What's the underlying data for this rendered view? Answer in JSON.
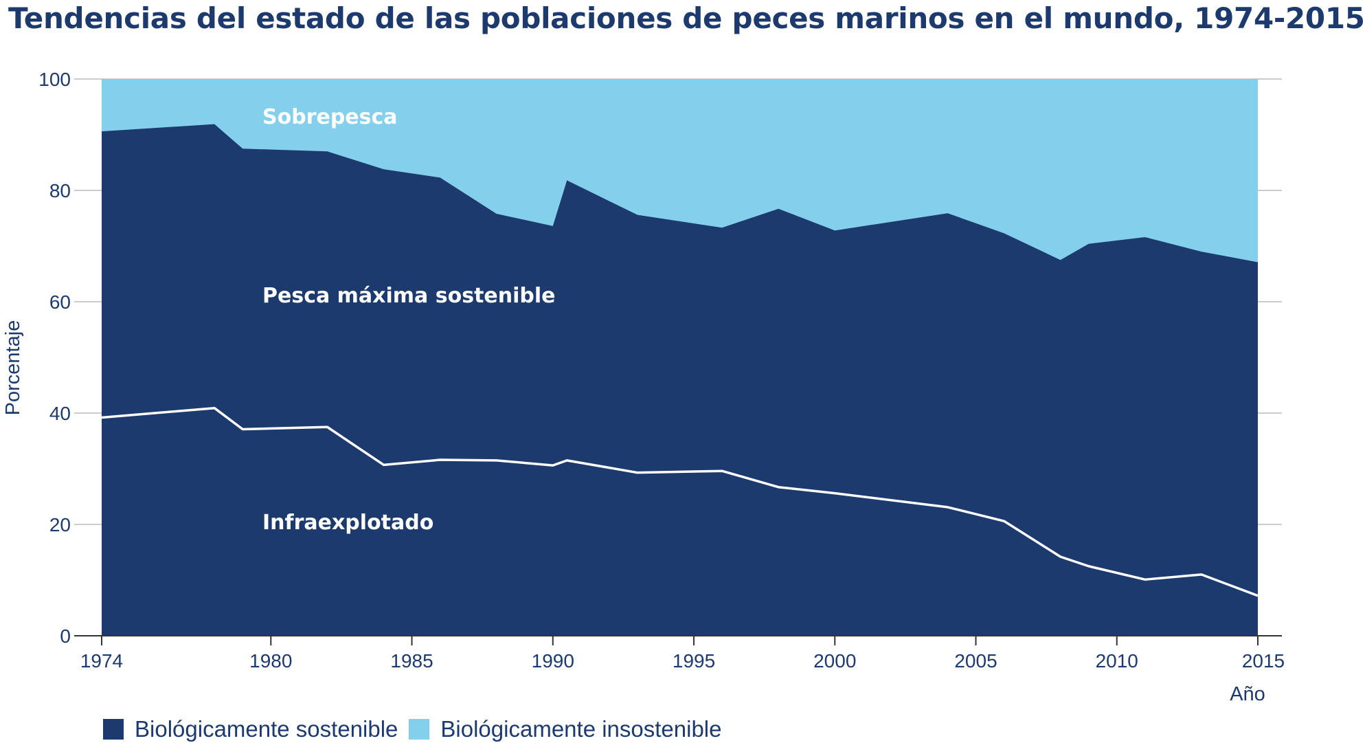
{
  "chart_data": {
    "type": "area",
    "title": "Tendencias del estado de las poblaciones de peces marinos en el mundo, 1974-2015",
    "xlabel": "Año",
    "ylabel": "Porcentaje",
    "xlim": [
      1974,
      2015
    ],
    "ylim": [
      0,
      100
    ],
    "x_ticks": [
      1974,
      1980,
      1985,
      1990,
      1995,
      2000,
      2005,
      2010,
      2015
    ],
    "y_ticks": [
      0,
      20,
      40,
      60,
      80,
      100
    ],
    "grid": "horizontal",
    "legend_position": "bottom-left",
    "colors": {
      "sostenible": "#1d3a6e",
      "insostenible": "#84cfeb",
      "line": "#ffffff",
      "text": "#1d3a6e",
      "grid": "#bbbbbb"
    },
    "legend": [
      {
        "label": "Biológicamente sostenible",
        "color": "#1d3a6e"
      },
      {
        "label": "Biológicamente insostenible",
        "color": "#84cfeb"
      }
    ],
    "region_labels": {
      "sobrepesca": "Sobrepesca",
      "pesca_maxima": "Pesca máxima sostenible",
      "infraexplotado": "Infraexplotado"
    },
    "series": [
      {
        "name": "Biológicamente sostenible",
        "x": [
          1974,
          1978,
          1979,
          1982,
          1984,
          1986,
          1988,
          1990,
          1990.5,
          1993,
          1996,
          1998,
          2000,
          2004,
          2006,
          2008,
          2009,
          2011,
          2013,
          2015
        ],
        "values": [
          90.6,
          91.9,
          87.5,
          87.0,
          83.8,
          82.3,
          75.8,
          73.6,
          81.8,
          75.6,
          73.3,
          76.7,
          72.8,
          75.9,
          72.3,
          67.5,
          70.4,
          71.6,
          69.0,
          67.1
        ]
      },
      {
        "name": "Infraexplotado",
        "x": [
          1974,
          1978,
          1979,
          1982,
          1984,
          1986,
          1988,
          1990,
          1990.5,
          1993,
          1996,
          1998,
          2000,
          2004,
          2006,
          2008,
          2009,
          2011,
          2013,
          2015
        ],
        "values": [
          39.2,
          40.9,
          37.1,
          37.5,
          30.7,
          31.6,
          31.5,
          30.6,
          31.5,
          29.3,
          29.6,
          26.7,
          25.6,
          23.1,
          20.6,
          14.2,
          12.5,
          10.1,
          11.0,
          7.2
        ]
      }
    ]
  }
}
